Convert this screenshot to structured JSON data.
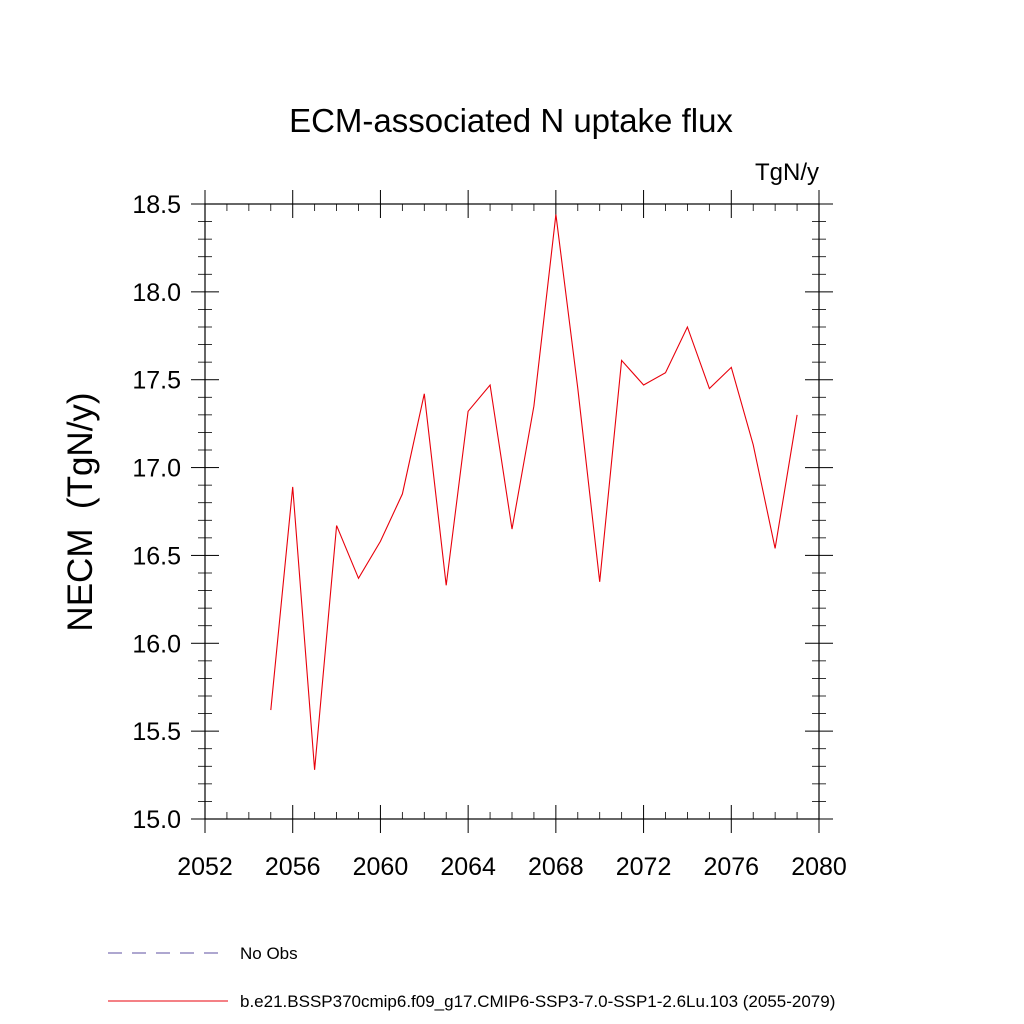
{
  "chart_data": {
    "type": "line",
    "title": "ECM-associated N uptake flux",
    "units": "TgN/y",
    "ylabel": "NECM  (TgN/y)",
    "xlabel": "",
    "xlim": [
      2052,
      2080
    ],
    "ylim": [
      15.0,
      18.5
    ],
    "xticks": [
      2052,
      2056,
      2060,
      2064,
      2068,
      2072,
      2076,
      2080
    ],
    "yticks": [
      15.0,
      15.5,
      16.0,
      16.5,
      17.0,
      17.5,
      18.0,
      18.5
    ],
    "xtick_labels": [
      "2052",
      "2056",
      "2060",
      "2064",
      "2068",
      "2072",
      "2076",
      "2080"
    ],
    "ytick_labels": [
      "15.0",
      "15.5",
      "16.0",
      "16.5",
      "17.0",
      "17.5",
      "18.0",
      "18.5"
    ],
    "grid": false,
    "legend_position": "bottom-left",
    "x": [
      2055,
      2056,
      2057,
      2058,
      2059,
      2060,
      2061,
      2062,
      2063,
      2064,
      2065,
      2066,
      2067,
      2068,
      2069,
      2070,
      2071,
      2072,
      2073,
      2074,
      2075,
      2076,
      2077,
      2078,
      2079
    ],
    "series": [
      {
        "name": "b.e21.BSSP370cmip6.f09_g17.CMIP6-SSP3-7.0-SSP1-2.6Lu.103 (2055-2079)",
        "color": "#e8000b",
        "values": [
          15.62,
          16.89,
          15.28,
          16.67,
          16.37,
          16.58,
          16.85,
          17.42,
          16.33,
          17.32,
          17.47,
          16.65,
          17.35,
          18.44,
          17.45,
          16.35,
          17.61,
          17.47,
          17.54,
          17.8,
          17.45,
          17.57,
          17.13,
          16.54,
          17.3
        ]
      }
    ],
    "legend": [
      {
        "label": "No Obs",
        "color": "#5e4fa2",
        "style": "dashed"
      },
      {
        "label": "b.e21.BSSP370cmip6.f09_g17.CMIP6-SSP3-7.0-SSP1-2.6Lu.103 (2055-2079)",
        "color": "#e8000b",
        "style": "solid"
      }
    ]
  }
}
